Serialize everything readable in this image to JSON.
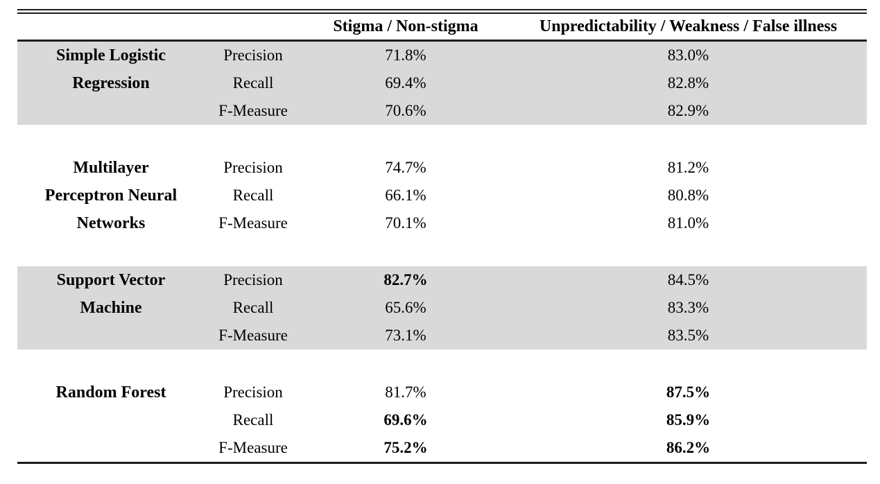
{
  "style": {
    "shaded_band_color": "#d9d9d9",
    "rule_color": "#1c1c1c",
    "text_color": "#000000",
    "background": "#ffffff"
  },
  "chart_data": {
    "type": "table",
    "title": "",
    "column_headers": [
      "",
      "",
      "Stigma / Non-stigma",
      "Unpredictability / Weakness / False illness"
    ],
    "metrics": [
      "Precision",
      "Recall",
      "F-Measure"
    ],
    "models": [
      "Simple Logistic Regression",
      "Multilayer Perceptron Neural Networks",
      "Support Vector Machine",
      "Random Forest"
    ],
    "values_percent": {
      "Stigma / Non-stigma": {
        "Simple Logistic Regression": [
          71.8,
          69.4,
          70.6
        ],
        "Multilayer Perceptron Neural Networks": [
          74.7,
          66.1,
          70.1
        ],
        "Support Vector Machine": [
          82.7,
          65.6,
          73.1
        ],
        "Random Forest": [
          81.7,
          69.6,
          75.2
        ]
      },
      "Unpredictability / Weakness / False illness": {
        "Simple Logistic Regression": [
          83.0,
          82.8,
          82.9
        ],
        "Multilayer Perceptron Neural Networks": [
          81.2,
          80.8,
          81.0
        ],
        "Support Vector Machine": [
          84.5,
          83.3,
          83.5
        ],
        "Random Forest": [
          87.5,
          85.9,
          86.2
        ]
      }
    }
  },
  "table": {
    "headers": {
      "task1": "Stigma / Non-stigma",
      "task2": "Unpredictability / Weakness / False illness"
    },
    "sections": [
      {
        "model": "Simple Logistic Regression",
        "model_lines": [
          "Simple Logistic",
          "Regression"
        ],
        "shaded": true,
        "rows": [
          {
            "metric": "Precision",
            "task1": "71.8%",
            "task2": "83.0%"
          },
          {
            "metric": "Recall",
            "task1": "69.4%",
            "task2": "82.8%"
          },
          {
            "metric": "F-Measure",
            "task1": "70.6%",
            "task2": "82.9%"
          }
        ]
      },
      {
        "model": "Multilayer Perceptron Neural Networks",
        "model_lines": [
          "Multilayer",
          "Perceptron Neural",
          "Networks"
        ],
        "shaded": false,
        "rows": [
          {
            "metric": "Precision",
            "task1": "74.7%",
            "task2": "81.2%"
          },
          {
            "metric": "Recall",
            "task1": "66.1%",
            "task2": "80.8%"
          },
          {
            "metric": "F-Measure",
            "task1": "70.1%",
            "task2": "81.0%"
          }
        ]
      },
      {
        "model": "Support Vector Machine",
        "model_lines": [
          "Support Vector",
          "Machine"
        ],
        "shaded": true,
        "rows": [
          {
            "metric": "Precision",
            "task1": "82.7%",
            "task1_bold": true,
            "task2": "84.5%"
          },
          {
            "metric": "Recall",
            "task1": "65.6%",
            "task2": "83.3%"
          },
          {
            "metric": "F-Measure",
            "task1": "73.1%",
            "task2": "83.5%"
          }
        ]
      },
      {
        "model": "Random Forest",
        "model_lines": [
          "Random Forest"
        ],
        "shaded": false,
        "rows": [
          {
            "metric": "Precision",
            "task1": "81.7%",
            "task2": "87.5%",
            "task2_bold": true
          },
          {
            "metric": "Recall",
            "task1": "69.6%",
            "task1_bold": true,
            "task2": "85.9%",
            "task2_bold": true
          },
          {
            "metric": "F-Measure",
            "task1": "75.2%",
            "task1_bold": true,
            "task2": "86.2%",
            "task2_bold": true
          }
        ]
      }
    ]
  }
}
